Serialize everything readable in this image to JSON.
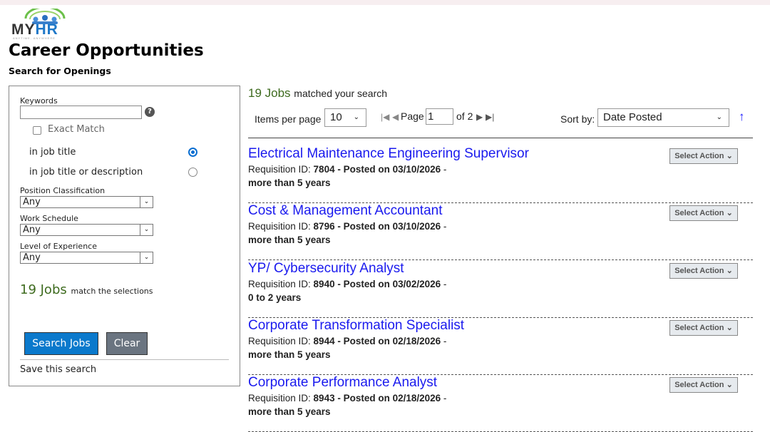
{
  "logo": {
    "text_my": "MY",
    "text_hr": "HR",
    "tagline": "ANYTIME, ANYWHERE"
  },
  "page_title": "Career Opportunities",
  "subtitle": "Search for Openings",
  "filters": {
    "keywords_label": "Keywords",
    "keywords_value": "",
    "help_icon": "?",
    "exact_match_label": "Exact Match",
    "exact_match_checked": false,
    "radio_options": [
      {
        "label": "in job title",
        "selected": true
      },
      {
        "label": "in job title or description",
        "selected": false
      }
    ],
    "selects": [
      {
        "label": "Position Classification",
        "value": "Any"
      },
      {
        "label": "Work Schedule",
        "value": "Any"
      },
      {
        "label": "Level of Experience",
        "value": "Any"
      }
    ],
    "count": "19 Jobs",
    "count_suffix": "match the selections",
    "search_button": "Search Jobs",
    "clear_button": "Clear",
    "save_search": "Save this search"
  },
  "results": {
    "count": "19 Jobs",
    "count_suffix": "matched your search",
    "items_per_page_label": "Items per page",
    "items_per_page": "10",
    "page_label": "Page",
    "page_value": "1",
    "page_of": "of 2",
    "sort_label": "Sort by:",
    "sort_value": "Date Posted",
    "jobs": [
      {
        "title": "Electrical Maintenance Engineering Supervisor",
        "req_label": "Requisition ID: ",
        "req_id": "7804",
        "posted": " - Posted on 03/10/2026",
        "tail": " -",
        "experience": "more than 5 years",
        "action": "Select Action"
      },
      {
        "title": "Cost & Management Accountant",
        "req_label": "Requisition ID: ",
        "req_id": "8796",
        "posted": " - Posted on 03/10/2026",
        "tail": " -",
        "experience": "more than 5 years",
        "action": "Select Action"
      },
      {
        "title": "YP/ Cybersecurity Analyst",
        "req_label": "Requisition ID: ",
        "req_id": "8940",
        "posted": " - Posted on 03/02/2026",
        "tail": " -",
        "experience": "0 to 2 years",
        "action": "Select Action"
      },
      {
        "title": "Corporate Transformation Specialist",
        "req_label": "Requisition ID: ",
        "req_id": "8944",
        "posted": " - Posted on 02/18/2026",
        "tail": " -",
        "experience": "more than 5 years",
        "action": "Select Action"
      },
      {
        "title": "Corporate Performance Analyst",
        "req_label": "Requisition ID: ",
        "req_id": "8943",
        "posted": " - Posted on 02/18/2026",
        "tail": " -",
        "experience": "more than 5 years",
        "action": "Select Action"
      }
    ]
  },
  "colors": {
    "accent": "#0a79cc",
    "count_green": "#3e6b1f",
    "link_blue": "#1a1aee"
  }
}
